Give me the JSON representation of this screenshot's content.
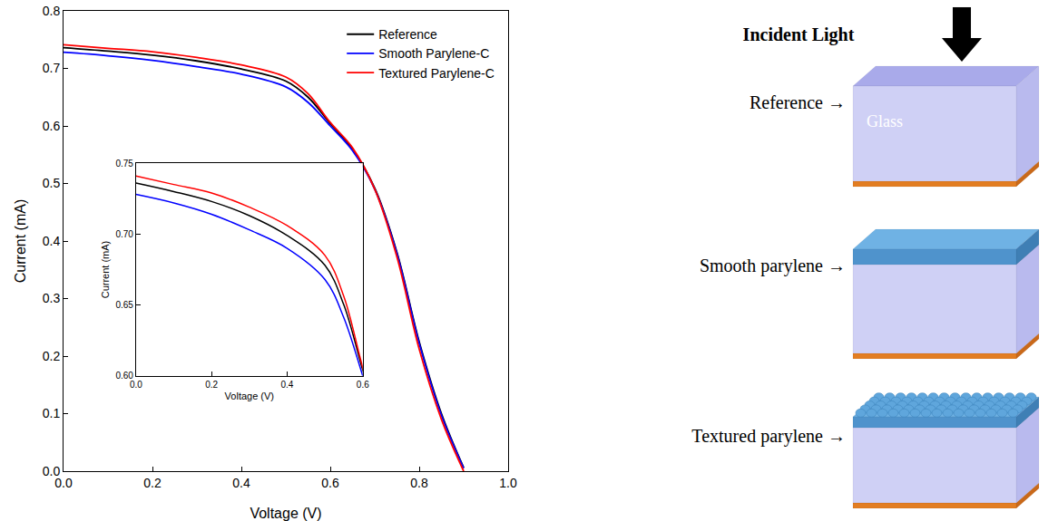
{
  "chart_data": {
    "type": "line",
    "xlabel": "Voltage (V)",
    "ylabel": "Current (mA)",
    "x": [
      0,
      0.1,
      0.2,
      0.3,
      0.4,
      0.5,
      0.55,
      0.6,
      0.65,
      0.7,
      0.75,
      0.8,
      0.85,
      0.9
    ],
    "series": [
      {
        "name": "Reference",
        "color": "#000000",
        "values": [
          0.736,
          0.73,
          0.723,
          0.713,
          0.699,
          0.678,
          0.65,
          0.604,
          0.56,
          0.492,
          0.38,
          0.225,
          0.1,
          0.006
        ]
      },
      {
        "name": "Smooth Parylene-C",
        "color": "#0000ff",
        "values": [
          0.728,
          0.722,
          0.714,
          0.703,
          0.69,
          0.668,
          0.641,
          0.6,
          0.557,
          0.49,
          0.378,
          0.222,
          0.097,
          0.005
        ]
      },
      {
        "name": "Textured Parylene-C",
        "color": "#ff0000",
        "values": [
          0.741,
          0.735,
          0.729,
          0.719,
          0.706,
          0.685,
          0.656,
          0.606,
          0.562,
          0.49,
          0.372,
          0.212,
          0.09,
          0.0
        ]
      }
    ],
    "xlim": [
      0,
      1.0
    ],
    "ylim": [
      0,
      0.8
    ],
    "xticks": [
      {
        "value": 0,
        "label": "0.0"
      },
      {
        "value": 0.2,
        "label": "0.2"
      },
      {
        "value": 0.4,
        "label": "0.4"
      },
      {
        "value": 0.6,
        "label": "0.6"
      },
      {
        "value": 0.8,
        "label": "0.8"
      },
      {
        "value": 1.0,
        "label": "1.0"
      }
    ],
    "yticks": [
      {
        "value": 0,
        "label": "0.0"
      },
      {
        "value": 0.1,
        "label": "0.1"
      },
      {
        "value": 0.2,
        "label": "0.2"
      },
      {
        "value": 0.3,
        "label": "0.3"
      },
      {
        "value": 0.4,
        "label": "0.4"
      },
      {
        "value": 0.5,
        "label": "0.5"
      },
      {
        "value": 0.6,
        "label": "0.6"
      },
      {
        "value": 0.7,
        "label": "0.7"
      },
      {
        "value": 0.8,
        "label": "0.8"
      }
    ],
    "grid": false,
    "legend": "top right",
    "inset": {
      "xlabel": "Voltage (V)",
      "ylabel": "Current (mA)",
      "xlim": [
        0,
        0.6
      ],
      "ylim": [
        0.6,
        0.75
      ],
      "xticks": [
        {
          "value": 0,
          "label": "0.0"
        },
        {
          "value": 0.2,
          "label": "0.2"
        },
        {
          "value": 0.4,
          "label": "0.4"
        },
        {
          "value": 0.6,
          "label": "0.6"
        }
      ],
      "yticks": [
        {
          "value": 0.6,
          "label": "0.60"
        },
        {
          "value": 0.65,
          "label": "0.65"
        },
        {
          "value": 0.7,
          "label": "0.70"
        },
        {
          "value": 0.75,
          "label": "0.75"
        }
      ]
    }
  },
  "diagram": {
    "incident_light": "Incident Light",
    "substrate": "Glass",
    "samples": [
      "Reference →",
      "Smooth parylene →",
      "Textured parylene →"
    ]
  }
}
